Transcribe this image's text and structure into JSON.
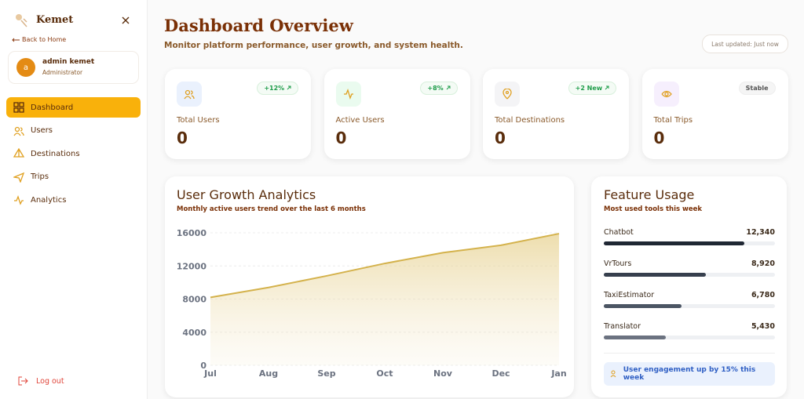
{
  "sidebar": {
    "brand": "Kemet",
    "back": "Back to Home",
    "user": {
      "avatar": "a",
      "name": "admin kemet",
      "role": "Administrator"
    },
    "nav": [
      "Dashboard",
      "Users",
      "Destinations",
      "Trips",
      "Analytics"
    ],
    "logout": "Log out"
  },
  "header": {
    "title": "Dashboard Overview",
    "subtitle": "Monitor platform performance, user growth, and system health.",
    "updated": "Last updated: Just now"
  },
  "stats": [
    {
      "label": "Total Users",
      "value": 0,
      "badge": "+12%"
    },
    {
      "label": "Active Users",
      "value": 0,
      "badge": "+8%"
    },
    {
      "label": "Total Destinations",
      "value": 0,
      "badge": "+2 New"
    },
    {
      "label": "Total Trips",
      "value": 0,
      "badge": "Stable"
    }
  ],
  "chart_data": {
    "type": "area",
    "title": "User Growth Analytics",
    "subtitle": "Monthly active users trend over the last 6 months",
    "categories": [
      "Jul",
      "Aug",
      "Sep",
      "Oct",
      "Nov",
      "Dec",
      "Jan"
    ],
    "values": [
      8200,
      9400,
      10800,
      12300,
      13600,
      14500,
      15900
    ],
    "color": "#d4b24c",
    "ylim": [
      0,
      16000
    ],
    "yticks": [
      0,
      4000,
      8000,
      12000,
      16000
    ],
    "grid": true
  },
  "feature_usage": {
    "title": "Feature Usage",
    "subtitle": "Most used tools this week",
    "names": [
      "Chatbot",
      "VrTours",
      "TaxiEstimator",
      "Translator"
    ],
    "values": [
      12340,
      8920,
      6780,
      5430
    ],
    "value_labels": [
      "12,340",
      "8,920",
      "6,780",
      "5,430"
    ],
    "colors": [
      "#1f2733",
      "#363f4d",
      "#4b5563",
      "#6b7280"
    ],
    "xlim": [
      0,
      15000
    ],
    "note": "User engagement up by 15% this week"
  }
}
